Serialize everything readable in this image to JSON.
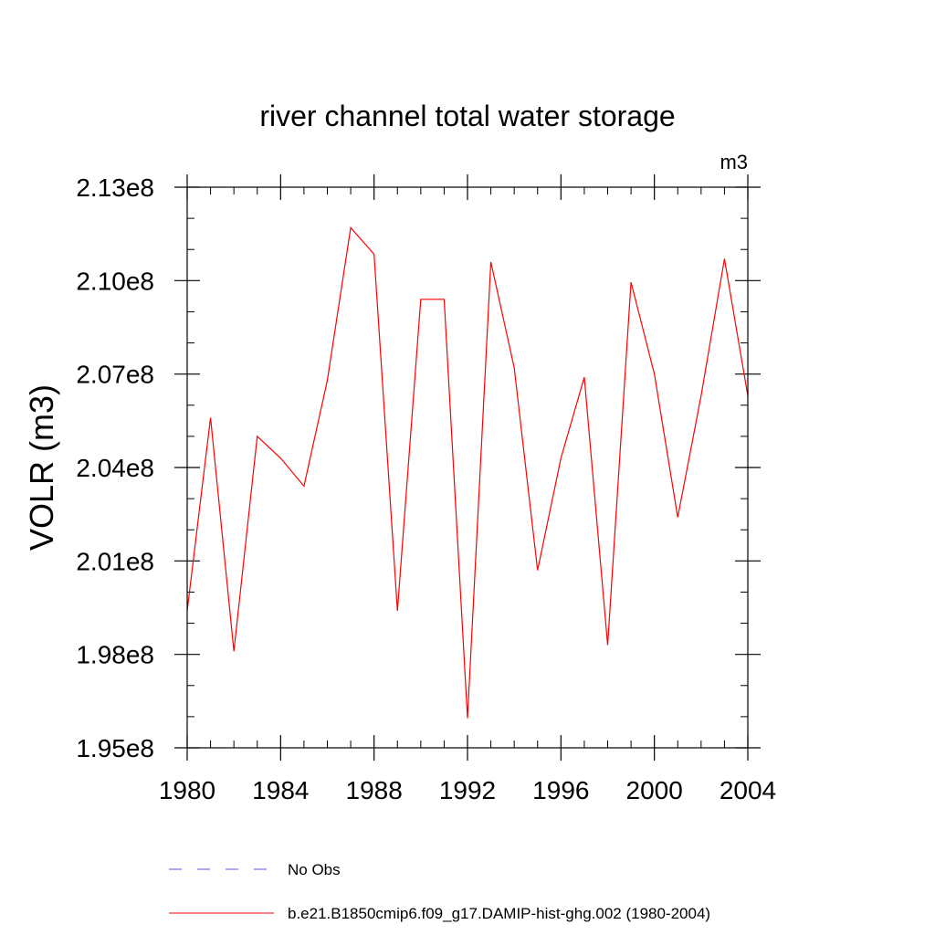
{
  "chart_data": {
    "type": "line",
    "title": "river channel total water storage",
    "units_label": "m3",
    "ylabel": "VOLR  (m3)",
    "xlabel": "",
    "xlim": [
      1980,
      2004
    ],
    "ylim": [
      195000000,
      213000000
    ],
    "x_ticks": [
      1980,
      1984,
      1988,
      1992,
      1996,
      2000,
      2004
    ],
    "x_tick_labels": [
      "1980",
      "1984",
      "1988",
      "1992",
      "1996",
      "2000",
      "2004"
    ],
    "y_ticks": [
      195000000,
      198000000,
      201000000,
      204000000,
      207000000,
      210000000,
      213000000
    ],
    "y_tick_labels": [
      "1.95e8",
      "1.98e8",
      "2.01e8",
      "2.04e8",
      "2.07e8",
      "2.10e8",
      "2.13e8"
    ],
    "grid": false,
    "legend_position": "bottom",
    "series": [
      {
        "name": "b.e21.B1850cmip6.f09_g17.DAMIP-hist-ghg.002 (1980-2004)",
        "color": "#ff0000",
        "style": "solid",
        "x": [
          1980,
          1981,
          1982,
          1983,
          1984,
          1985,
          1986,
          1987,
          1988,
          1989,
          1990,
          1991,
          1992,
          1993,
          1994,
          1995,
          1996,
          1997,
          1998,
          1999,
          2000,
          2001,
          2002,
          2003,
          2004
        ],
        "y": [
          199400000,
          205600000,
          198100000,
          205000000,
          204300000,
          203400000,
          206800000,
          211700000,
          210850000,
          199400000,
          209400000,
          209400000,
          195950000,
          210600000,
          207200000,
          200700000,
          204300000,
          206900000,
          198300000,
          209950000,
          207000000,
          202400000,
          206300000,
          210700000,
          206300000
        ]
      },
      {
        "name": "No Obs",
        "color": "#5555ff",
        "style": "dashed",
        "x": [],
        "y": []
      }
    ]
  }
}
